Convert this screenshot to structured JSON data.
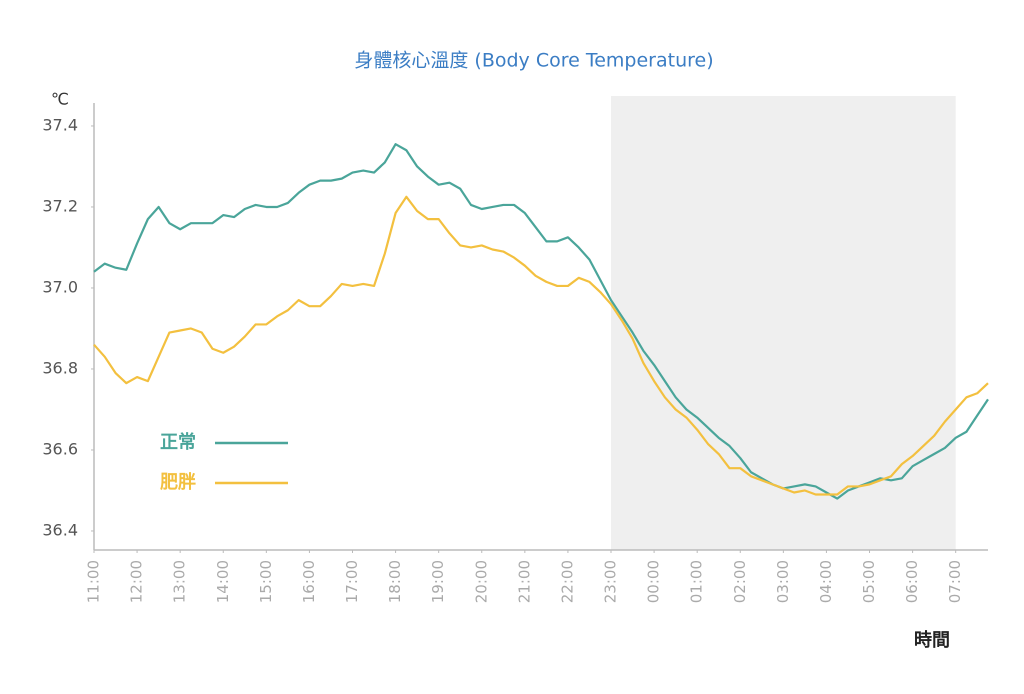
{
  "chart_data": {
    "type": "line",
    "title": "身體核心溫度 (Body Core Temperature)",
    "y_label": "℃",
    "x_label": "時間",
    "x": [
      11,
      11.25,
      11.5,
      11.75,
      12,
      12.25,
      12.5,
      12.75,
      13,
      13.25,
      13.5,
      13.75,
      14,
      14.25,
      14.5,
      14.75,
      15,
      15.25,
      15.5,
      15.75,
      16,
      16.25,
      16.5,
      16.75,
      17,
      17.25,
      17.5,
      17.75,
      18,
      18.25,
      18.5,
      18.75,
      19,
      19.25,
      19.5,
      19.75,
      20,
      20.25,
      20.5,
      20.75,
      21,
      21.25,
      21.5,
      21.75,
      22,
      22.25,
      22.5,
      22.75,
      23,
      23.25,
      23.5,
      23.75,
      24,
      24.25,
      24.5,
      24.75,
      25,
      25.25,
      25.5,
      25.75,
      26,
      26.25,
      26.5,
      26.75,
      27,
      27.25,
      27.5,
      27.75,
      28,
      28.25,
      28.5,
      28.75,
      29,
      29.25,
      29.5,
      29.75,
      30,
      30.25,
      30.5,
      30.75,
      31,
      31.25,
      31.5,
      31.75
    ],
    "series": [
      {
        "name": "正常",
        "color": "#4aa59a",
        "values": [
          37.04,
          37.06,
          37.05,
          37.045,
          37.11,
          37.17,
          37.2,
          37.16,
          37.145,
          37.16,
          37.16,
          37.16,
          37.18,
          37.175,
          37.195,
          37.205,
          37.2,
          37.2,
          37.21,
          37.235,
          37.255,
          37.265,
          37.265,
          37.27,
          37.285,
          37.29,
          37.285,
          37.31,
          37.355,
          37.34,
          37.3,
          37.275,
          37.255,
          37.26,
          37.245,
          37.205,
          37.195,
          37.2,
          37.205,
          37.205,
          37.185,
          37.15,
          37.115,
          37.115,
          37.125,
          37.1,
          37.07,
          37.02,
          36.97,
          36.93,
          36.89,
          36.845,
          36.81,
          36.77,
          36.73,
          36.7,
          36.68,
          36.655,
          36.63,
          36.61,
          36.58,
          36.545,
          36.53,
          36.515,
          36.505,
          36.51,
          36.515,
          36.51,
          36.495,
          36.48,
          36.5,
          36.51,
          36.52,
          36.53,
          36.525,
          36.53,
          36.56,
          36.575,
          36.59,
          36.605,
          36.63,
          36.645,
          36.685,
          36.725
        ]
      },
      {
        "name": "肥胖",
        "color": "#f3c03f",
        "values": [
          36.86,
          36.83,
          36.79,
          36.765,
          36.78,
          36.77,
          36.83,
          36.89,
          36.895,
          36.9,
          36.89,
          36.85,
          36.84,
          36.855,
          36.88,
          36.91,
          36.91,
          36.93,
          36.945,
          36.97,
          36.955,
          36.955,
          36.98,
          37.01,
          37.005,
          37.01,
          37.005,
          37.085,
          37.185,
          37.225,
          37.19,
          37.17,
          37.17,
          37.135,
          37.105,
          37.1,
          37.105,
          37.095,
          37.09,
          37.075,
          37.055,
          37.03,
          37.015,
          37.005,
          37.005,
          37.025,
          37.015,
          36.99,
          36.96,
          36.92,
          36.875,
          36.815,
          36.77,
          36.73,
          36.7,
          36.68,
          36.65,
          36.615,
          36.59,
          36.555,
          36.555,
          36.535,
          36.525,
          36.515,
          36.505,
          36.495,
          36.5,
          36.49,
          36.49,
          36.49,
          36.51,
          36.51,
          36.515,
          36.525,
          36.535,
          36.565,
          36.585,
          36.61,
          36.635,
          36.67,
          36.7,
          36.73,
          36.74,
          36.765
        ]
      }
    ],
    "xlim": [
      11,
      31.75
    ],
    "xticks": [
      {
        "value": 11,
        "label": "11:00"
      },
      {
        "value": 12,
        "label": "12:00"
      },
      {
        "value": 13,
        "label": "13:00"
      },
      {
        "value": 14,
        "label": "14:00"
      },
      {
        "value": 15,
        "label": "15:00"
      },
      {
        "value": 16,
        "label": "16:00"
      },
      {
        "value": 17,
        "label": "17:00"
      },
      {
        "value": 18,
        "label": "18:00"
      },
      {
        "value": 19,
        "label": "19:00"
      },
      {
        "value": 20,
        "label": "20:00"
      },
      {
        "value": 21,
        "label": "21:00"
      },
      {
        "value": 22,
        "label": "22:00"
      },
      {
        "value": 23,
        "label": "23:00"
      },
      {
        "value": 24,
        "label": "00:00"
      },
      {
        "value": 25,
        "label": "01:00"
      },
      {
        "value": 26,
        "label": "02:00"
      },
      {
        "value": 27,
        "label": "03:00"
      },
      {
        "value": 28,
        "label": "04:00"
      },
      {
        "value": 29,
        "label": "05:00"
      },
      {
        "value": 30,
        "label": "06:00"
      },
      {
        "value": 31,
        "label": "07:00"
      }
    ],
    "ylim": [
      36.353,
      37.474
    ],
    "yticks": [
      36.4,
      36.6,
      36.8,
      {
        "value": 37,
        "label": "37.0"
      },
      37.2,
      37.4
    ],
    "shaded_range": [
      23,
      31
    ],
    "shade_color": "#efefef",
    "grid": false
  }
}
